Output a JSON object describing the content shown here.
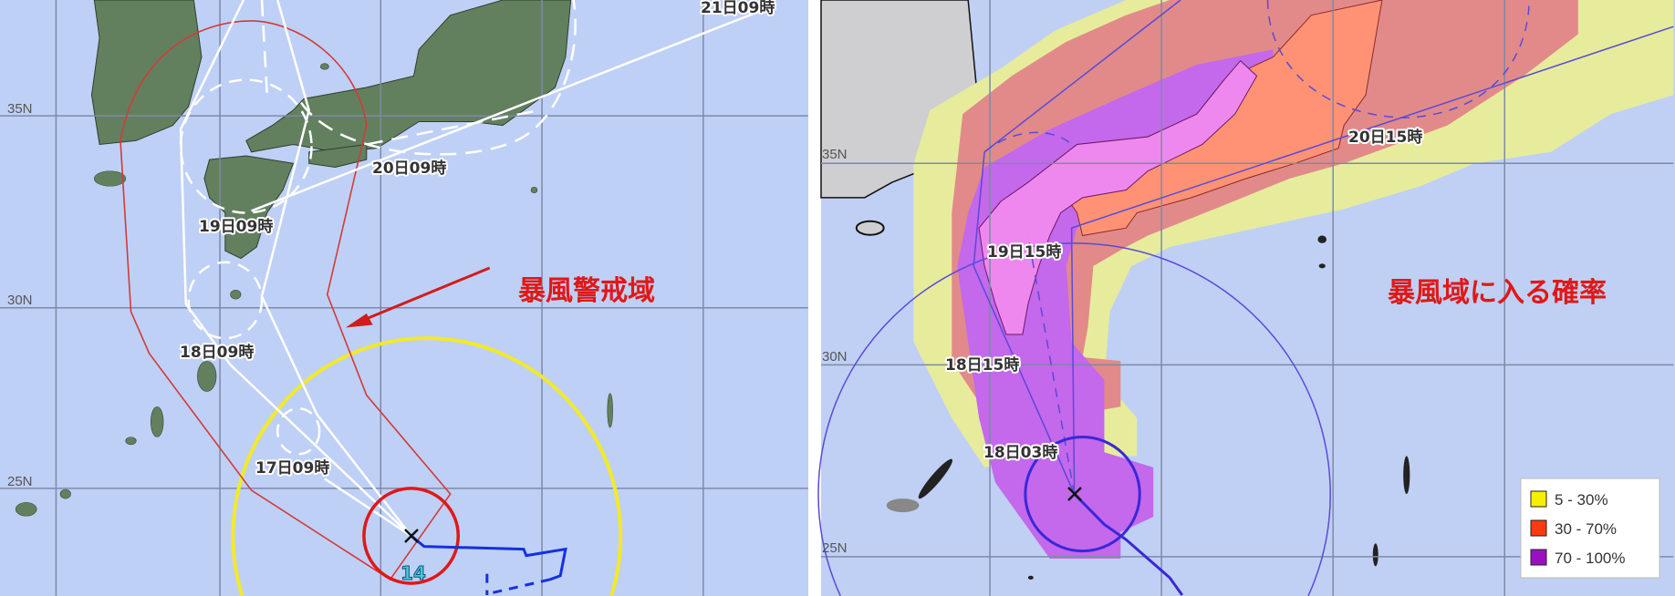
{
  "left_map": {
    "title": "暴風警戒域",
    "storm_number": "14",
    "latitude_labels": [
      "35N",
      "30N",
      "25N"
    ],
    "forecast_labels": [
      "21日09時",
      "20日09時",
      "19日09時",
      "18日09時",
      "17日09時"
    ],
    "colors": {
      "ocean": "#bfd0f6",
      "land": "#62805e",
      "warning_area": "#d23a3a",
      "storm_zone": "#e01818",
      "gale_zone": "#f2ea2a",
      "past_track": "#1530e0",
      "forecast_cone": "#ffffff"
    }
  },
  "right_map": {
    "title": "暴風域に入る確率",
    "latitude_labels": [
      "35N",
      "30N",
      "25N"
    ],
    "forecast_labels": [
      "20日15時",
      "19日15時",
      "18日15時",
      "18日03時"
    ],
    "legend": [
      {
        "label": "5 - 30%",
        "color": "#f5f000"
      },
      {
        "label": "30 - 70%",
        "color": "#ff3a10"
      },
      {
        "label": "70 - 100%",
        "color": "#9a10c0"
      }
    ],
    "colors": {
      "ocean": "#c0d0f4",
      "korea": "#cfcfd2",
      "track": "#4b3fd6"
    }
  }
}
